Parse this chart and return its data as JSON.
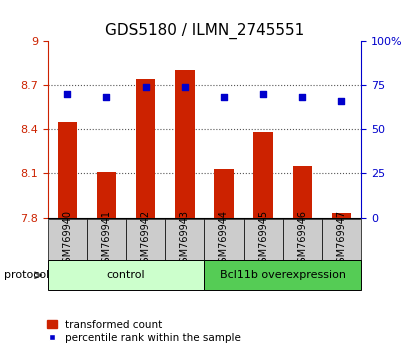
{
  "title": "GDS5180 / ILMN_2745551",
  "samples": [
    "GSM769940",
    "GSM769941",
    "GSM769942",
    "GSM769943",
    "GSM769944",
    "GSM769945",
    "GSM769946",
    "GSM769947"
  ],
  "transformed_count": [
    8.45,
    8.11,
    8.74,
    8.8,
    8.13,
    8.38,
    8.15,
    7.83
  ],
  "percentile_rank": [
    70,
    68,
    74,
    74,
    68,
    70,
    68,
    66
  ],
  "bar_baseline": 7.8,
  "ylim_left": [
    7.8,
    9.0
  ],
  "ylim_right": [
    0,
    100
  ],
  "yticks_left": [
    7.8,
    8.1,
    8.4,
    8.7,
    9.0
  ],
  "ytick_labels_left": [
    "7.8",
    "8.1",
    "8.4",
    "8.7",
    "9"
  ],
  "yticks_right": [
    0,
    25,
    50,
    75,
    100
  ],
  "ytick_labels_right": [
    "0",
    "25",
    "50",
    "75",
    "100%"
  ],
  "bar_color": "#cc2200",
  "dot_color": "#0000cc",
  "grid_color": "#555555",
  "group_labels": [
    "control",
    "Bcl11b overexpression"
  ],
  "group_ranges": [
    [
      0,
      3
    ],
    [
      4,
      7
    ]
  ],
  "group_colors_light": [
    "#ccffcc",
    "#55cc55"
  ],
  "protocol_label": "protocol",
  "legend_bar_label": "transformed count",
  "legend_dot_label": "percentile rank within the sample",
  "tick_area_color": "#cccccc",
  "title_fontsize": 11,
  "tick_fontsize": 8,
  "label_fontsize": 7,
  "group_fontsize": 8,
  "legend_fontsize": 7.5
}
